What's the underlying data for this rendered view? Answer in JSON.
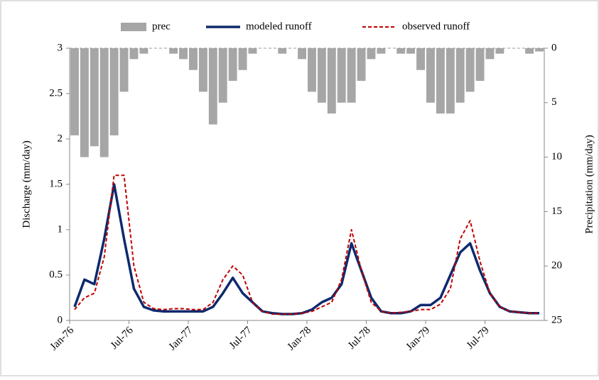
{
  "chart_data": {
    "type": "line",
    "y_label": "Discharge (mm/day)",
    "y2_label": "Precipitation (mm/day)",
    "categories": [
      "Jan-76",
      null,
      null,
      null,
      null,
      null,
      "Jul-76",
      null,
      null,
      null,
      null,
      null,
      "Jan-77",
      null,
      null,
      null,
      null,
      null,
      "Jul-77",
      null,
      null,
      null,
      null,
      null,
      "Jan-78",
      null,
      null,
      null,
      null,
      null,
      "Jul-78",
      null,
      null,
      null,
      null,
      null,
      "Jan-79",
      null,
      null,
      null,
      null,
      null,
      "Jul-79",
      null,
      null,
      null,
      null,
      null
    ],
    "series": [
      {
        "name": "prec",
        "color": "#a6a6a6",
        "kind": "bar",
        "axis": "y2",
        "values": [
          8,
          10,
          9,
          10,
          8,
          4,
          1,
          0.5,
          0,
          0,
          0.5,
          1,
          2,
          4,
          7,
          5,
          3,
          2,
          0.5,
          0,
          0,
          0.5,
          0,
          1,
          4,
          5,
          6,
          5,
          5,
          3,
          1,
          0.5,
          0,
          0.5,
          0.5,
          2,
          5,
          6,
          6,
          5,
          4,
          3,
          1,
          0.5,
          0,
          0,
          0.5,
          0.3
        ]
      },
      {
        "name": "modeled runoff",
        "color": "#0d2a6e",
        "kind": "line",
        "values": [
          0.15,
          0.45,
          0.4,
          0.9,
          1.5,
          0.9,
          0.35,
          0.15,
          0.11,
          0.1,
          0.1,
          0.1,
          0.1,
          0.1,
          0.15,
          0.3,
          0.47,
          0.3,
          0.2,
          0.1,
          0.08,
          0.07,
          0.07,
          0.08,
          0.12,
          0.2,
          0.25,
          0.4,
          0.85,
          0.55,
          0.25,
          0.1,
          0.08,
          0.08,
          0.1,
          0.17,
          0.17,
          0.25,
          0.5,
          0.75,
          0.85,
          0.55,
          0.3,
          0.15,
          0.1,
          0.09,
          0.08,
          0.08
        ]
      },
      {
        "name": "observed runoff",
        "color": "#c00000",
        "kind": "dashed",
        "values": [
          0.12,
          0.25,
          0.3,
          0.7,
          1.6,
          1.6,
          0.6,
          0.2,
          0.13,
          0.12,
          0.13,
          0.13,
          0.12,
          0.12,
          0.2,
          0.45,
          0.6,
          0.5,
          0.2,
          0.1,
          0.07,
          0.07,
          0.07,
          0.08,
          0.1,
          0.15,
          0.2,
          0.45,
          1.0,
          0.55,
          0.2,
          0.1,
          0.08,
          0.09,
          0.1,
          0.12,
          0.12,
          0.18,
          0.35,
          0.9,
          1.1,
          0.65,
          0.3,
          0.15,
          0.1,
          0.09,
          0.08,
          0.08
        ]
      }
    ],
    "ylim": [
      0,
      3
    ],
    "yticks": [
      0,
      0.5,
      1,
      1.5,
      2,
      2.5,
      3
    ],
    "y2lim": [
      25,
      0
    ],
    "y2ticks": [
      0,
      5,
      10,
      15,
      20,
      25
    ],
    "legend": "top"
  }
}
